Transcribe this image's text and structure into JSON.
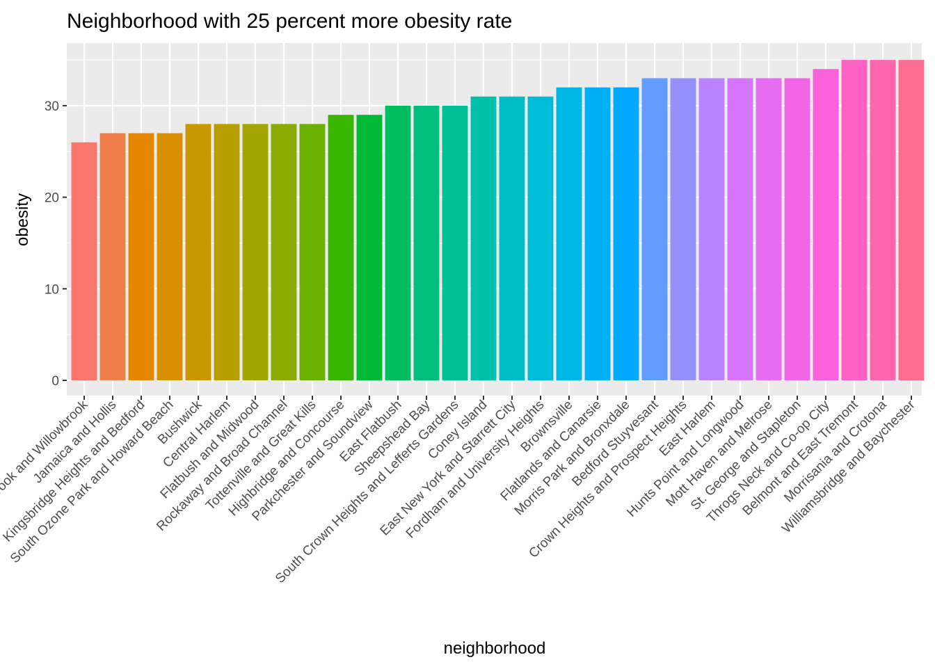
{
  "chart_data": {
    "type": "bar",
    "title": "Neighborhood with 25 percent more obesity rate",
    "xlabel": "neighborhood",
    "ylabel": "obesity",
    "ylim": [
      0,
      35
    ],
    "yticks": [
      0,
      10,
      20,
      30
    ],
    "grid": true,
    "legend": "none",
    "categories": [
      "Willowbrook and Willowbrook",
      "Jamaica and Hollis",
      "Kingsbridge Heights and Bedford",
      "South Ozone Park and Howard Beach",
      "Bushwick",
      "Central Harlem",
      "Flatbush and Midwood",
      "Rockaway and Broad Channel",
      "Tottenville and Great Kills",
      "Highbridge and Concourse",
      "Parkchester and Soundview",
      "East Flatbush",
      "Sheepshead Bay",
      "South Crown Heights and Lefferts Gardens",
      "Coney Island",
      "East New York and Starrett City",
      "Fordham and University Heights",
      "Brownsville",
      "Flatlands and Canarsie",
      "Morris Park and Bronxdale",
      "Bedford Stuyvesant",
      "Crown Heights and Prospect Heights",
      "East Harlem",
      "Hunts Point and Longwood",
      "Mott Haven and Melrose",
      "St. George and Stapleton",
      "Throgs Neck and Co-op City",
      "Belmont and East Tremont",
      "Morrisania and Crotona",
      "Williamsbridge and Baychester"
    ],
    "values": [
      26,
      27,
      27,
      27,
      28,
      28,
      28,
      28,
      28,
      29,
      29,
      30,
      30,
      30,
      31,
      31,
      31,
      32,
      32,
      32,
      33,
      33,
      33,
      33,
      33,
      33,
      34,
      35,
      35,
      35
    ],
    "colors": [
      "#F8766D",
      "#EF7F49",
      "#E58700",
      "#D89000",
      "#C99800",
      "#B79F00",
      "#A3A500",
      "#8CAB00",
      "#6BB100",
      "#39B600",
      "#00BA38",
      "#00BD5F",
      "#00BF7D",
      "#00C097",
      "#00C1AA",
      "#00BFC4",
      "#00BCD8",
      "#00B8E7",
      "#00B0F6",
      "#00A9FF",
      "#619CFF",
      "#9590FF",
      "#B983FF",
      "#D575FE",
      "#E76BF3",
      "#F265E7",
      "#FA62DB",
      "#FF61C3",
      "#FF65AE",
      "#FF6C91"
    ]
  }
}
